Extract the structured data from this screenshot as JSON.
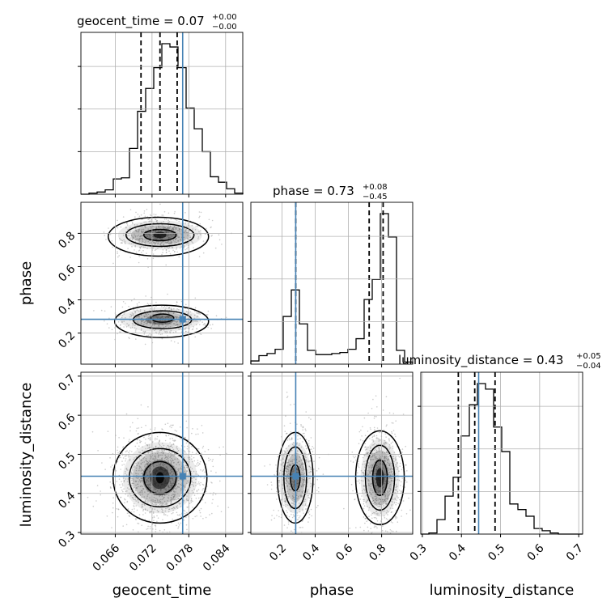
{
  "chart_data": {
    "type": "corner",
    "parameters": [
      "geocent_time",
      "phase",
      "luminosity_distance"
    ],
    "truth": {
      "geocent_time": 0.077,
      "phase": 0.283,
      "luminosity_distance": 0.444
    },
    "truth_color": "#4682b4",
    "ranges": {
      "geocent_time": [
        0.0604,
        0.0868
      ],
      "phase": [
        0.013,
        0.987
      ],
      "luminosity_distance": [
        0.296,
        0.71
      ]
    },
    "ticks": {
      "geocent_time": {
        "values": [
          0.066,
          0.072,
          0.078,
          0.084
        ],
        "labels": [
          "0.066",
          "0.072",
          "0.078",
          "0.084"
        ]
      },
      "phase": {
        "values": [
          0.2,
          0.4,
          0.6,
          0.8
        ],
        "labels": [
          "0.2",
          "0.4",
          "0.6",
          "0.8"
        ]
      },
      "luminosity_distance": {
        "values": [
          0.3,
          0.4,
          0.5,
          0.6,
          0.7
        ],
        "labels": [
          "0.3",
          "0.4",
          "0.5",
          "0.6",
          "0.7"
        ]
      }
    },
    "axis_labels": {
      "geocent_time": "geocent_time",
      "phase": "phase",
      "luminosity_distance": "luminosity_distance"
    },
    "titles": [
      {
        "param": "geocent_time",
        "main": "geocent_time = 0.07",
        "plus": "+0.00",
        "minus": "−0.00"
      },
      {
        "param": "phase",
        "main": "phase = 0.73",
        "plus": "+0.08",
        "minus": "−0.45"
      },
      {
        "param": "luminosity_distance",
        "main": "luminosity_distance = 0.43",
        "plus": "+0.05",
        "minus": "−0.04"
      }
    ],
    "quantiles": {
      "geocent_time": [
        0.0702,
        0.0733,
        0.0761
      ],
      "phase": [
        0.283,
        0.725,
        0.809
      ],
      "luminosity_distance": [
        0.392,
        0.434,
        0.486
      ]
    },
    "histograms": {
      "geocent_time": {
        "edges": [
          0.0604,
          0.0868
        ],
        "counts": [
          0,
          1,
          2,
          4,
          14,
          15,
          42,
          76,
          97,
          116,
          138,
          135,
          116,
          79,
          60,
          39,
          16,
          11,
          5,
          1
        ]
      },
      "phase": {
        "edges": [
          0.013,
          0.987
        ],
        "counts": [
          3,
          8,
          10,
          14,
          45,
          70,
          38,
          13,
          9,
          9,
          10,
          11,
          14,
          24,
          61,
          80,
          142,
          120,
          13,
          2
        ]
      },
      "luminosity_distance": {
        "edges": [
          0.296,
          0.71
        ],
        "counts": [
          0,
          1,
          13,
          34,
          51,
          88,
          116,
          135,
          130,
          96,
          74,
          27,
          22,
          16,
          5,
          3,
          1,
          0,
          0,
          0
        ]
      }
    },
    "grid": true
  }
}
